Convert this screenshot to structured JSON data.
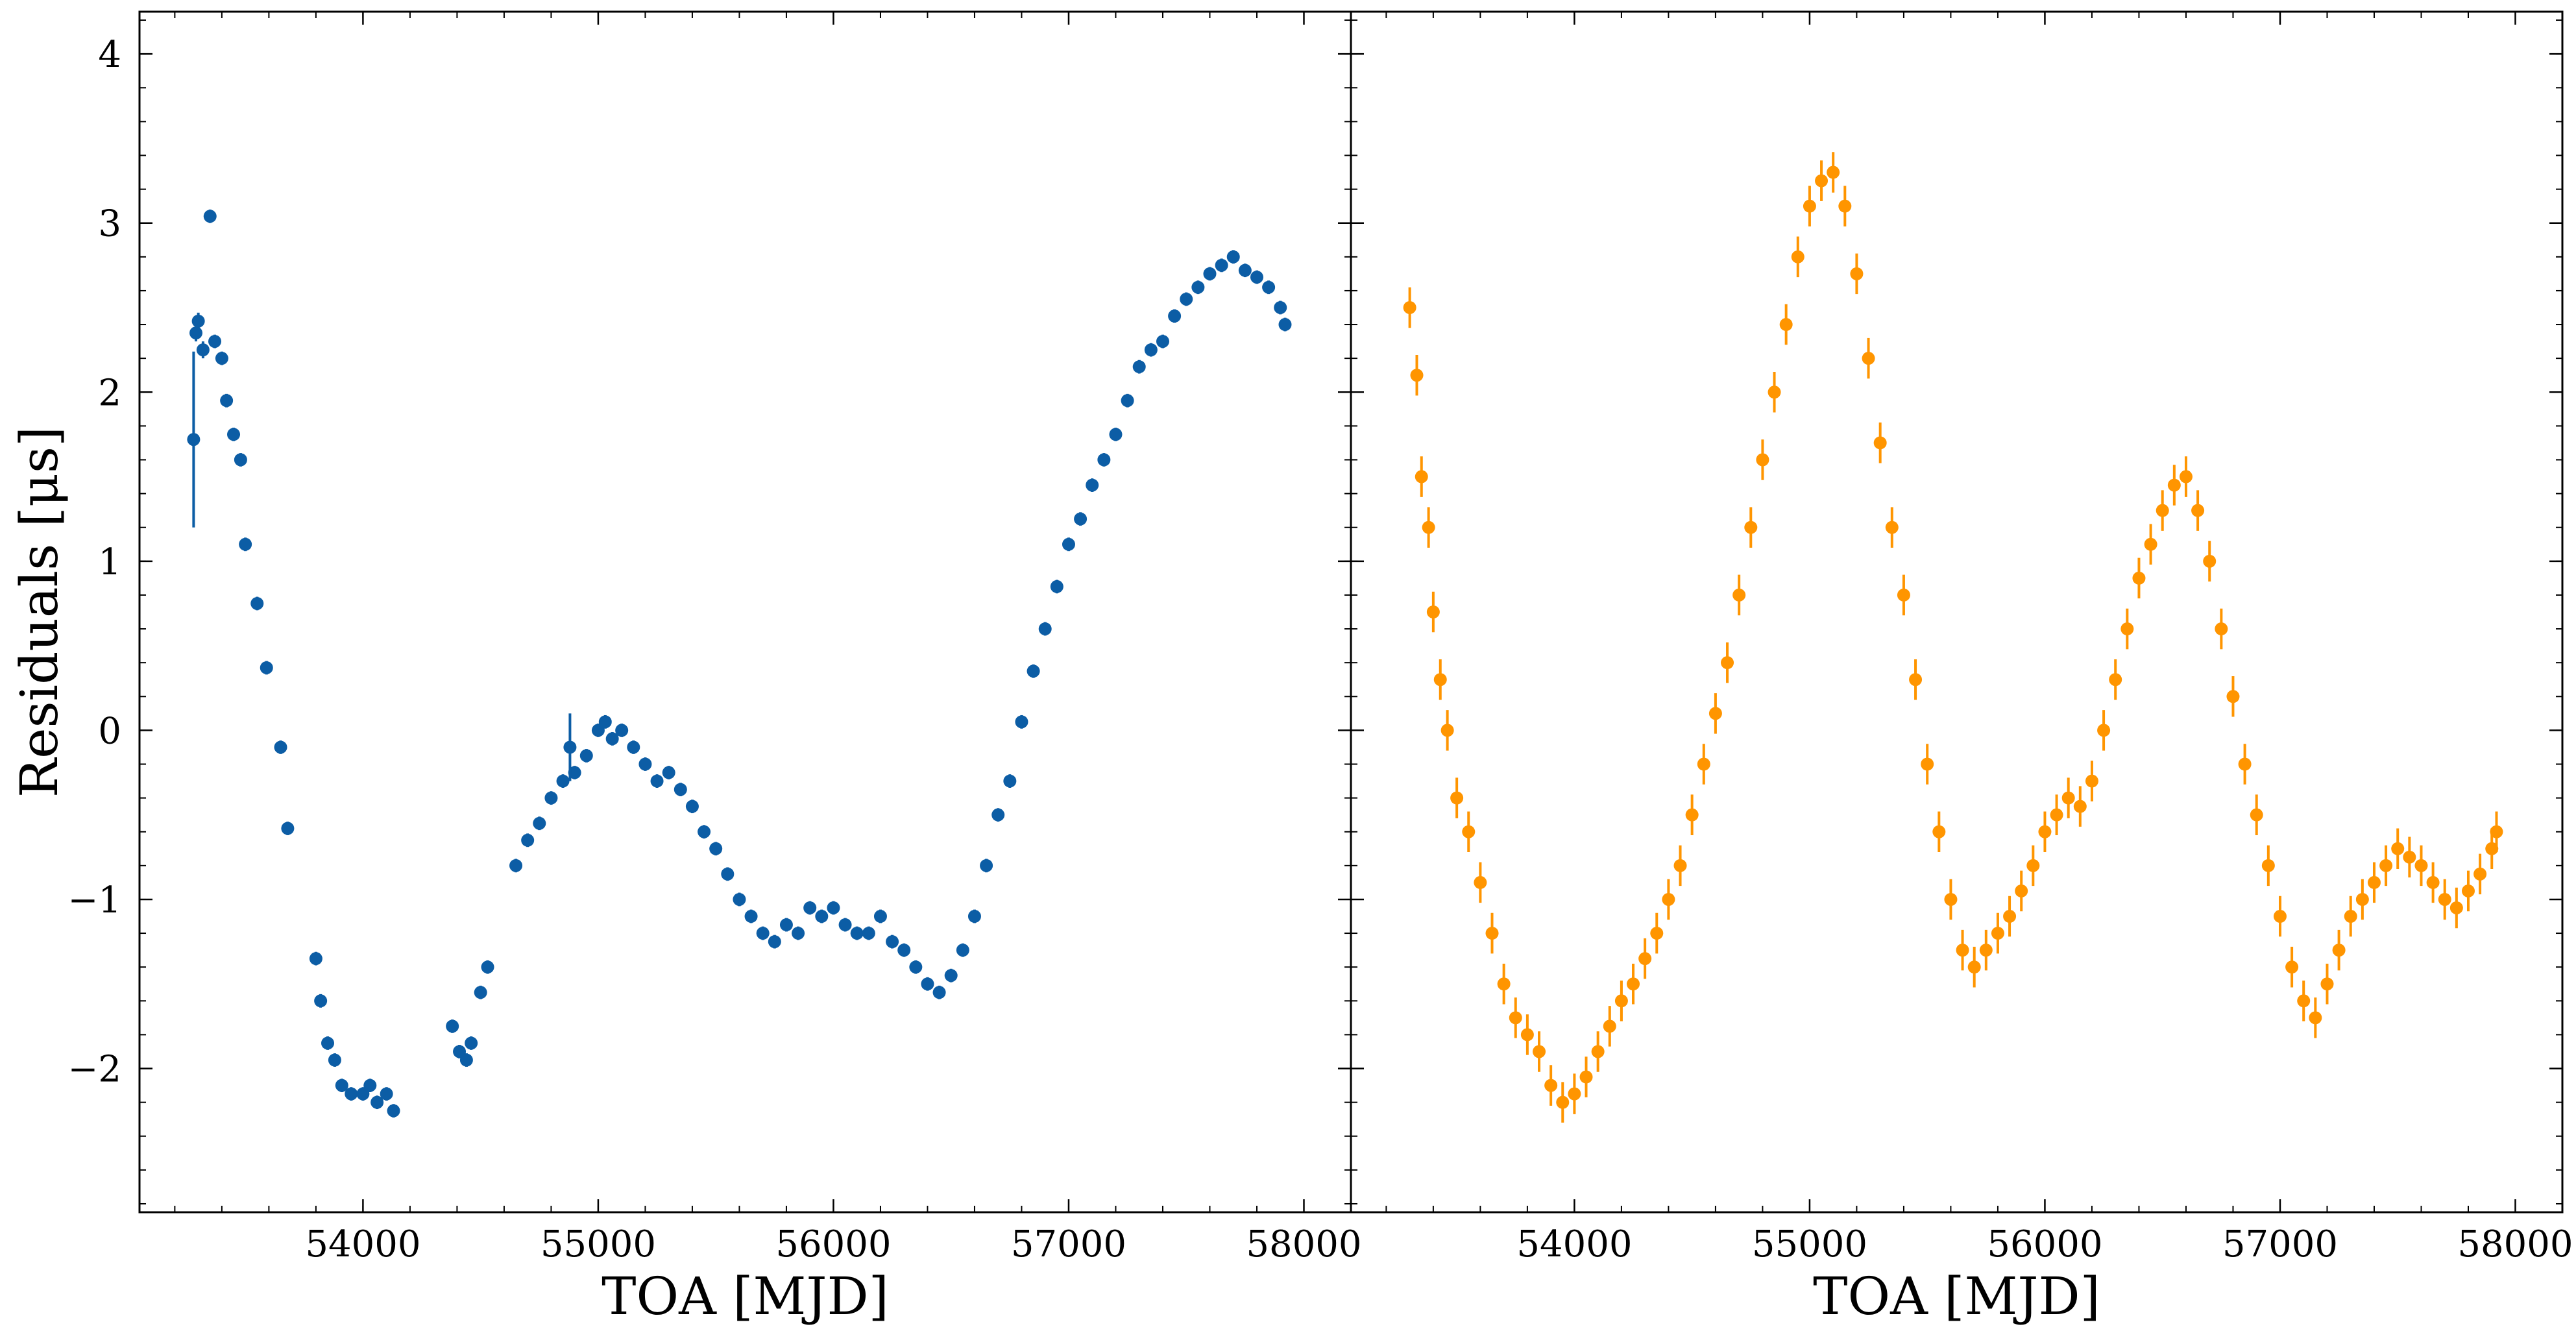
{
  "chart_data": [
    {
      "type": "scatter",
      "panel": "left",
      "title": "",
      "xlabel": "TOA [MJD]",
      "ylabel": "Residuals [μs]",
      "xlim": [
        53050,
        58200
      ],
      "ylim": [
        -2.85,
        4.25
      ],
      "xticks": [
        54000,
        55000,
        56000,
        57000,
        58000
      ],
      "yticks": [
        -2,
        -1,
        0,
        1,
        2,
        3,
        4
      ],
      "ytick_labels": [
        "−2",
        "−1",
        "0",
        "1",
        "2",
        "3",
        "4"
      ],
      "grid": false,
      "marker_color": "#0c5da5",
      "series": [
        {
          "x": [
            53290,
            53300,
            53320,
            53350,
            53370,
            53400,
            53420,
            53450,
            53480,
            53500,
            53550,
            53590,
            53650,
            53680,
            53800,
            53820,
            53850,
            53880,
            53910,
            53950,
            54000,
            54030,
            54060,
            54100,
            54130,
            54380,
            54410,
            54440,
            54460,
            54500,
            54530,
            54650,
            54700,
            54750,
            54800,
            54850,
            54900,
            54950,
            55000,
            55030,
            55060,
            55100,
            55150,
            55200,
            55250,
            55300,
            55350,
            55400,
            55450,
            55500,
            55550,
            55600,
            55650,
            55700,
            55750,
            55800,
            55850,
            55900,
            55950,
            56000,
            56050,
            56100,
            56150,
            56200,
            56250,
            56300,
            56350,
            56400,
            56450,
            56500,
            56550,
            56600,
            56650,
            56700,
            56750,
            56800,
            56850,
            56900,
            56950,
            57000,
            57050,
            57100,
            57150,
            57200,
            57250,
            57300,
            57350,
            57400,
            57450,
            57500,
            57550,
            57600,
            57650,
            57700,
            57750,
            57800,
            57850,
            57900,
            57920
          ],
          "y": [
            2.35,
            2.42,
            2.25,
            3.04,
            2.3,
            2.2,
            1.95,
            1.75,
            1.6,
            1.1,
            0.75,
            0.37,
            -0.1,
            -0.58,
            -1.35,
            -1.6,
            -1.85,
            -1.95,
            -2.1,
            -2.15,
            -2.15,
            -2.1,
            -2.2,
            -2.15,
            -2.25,
            -1.75,
            -1.9,
            -1.95,
            -1.85,
            -1.55,
            -1.4,
            -0.8,
            -0.65,
            -0.55,
            -0.4,
            -0.3,
            -0.25,
            -0.15,
            0.0,
            0.05,
            -0.05,
            0.0,
            -0.1,
            -0.2,
            -0.3,
            -0.25,
            -0.35,
            -0.45,
            -0.6,
            -0.7,
            -0.85,
            -1.0,
            -1.1,
            -1.2,
            -1.25,
            -1.15,
            -1.2,
            -1.05,
            -1.1,
            -1.05,
            -1.15,
            -1.2,
            -1.2,
            -1.1,
            -1.25,
            -1.3,
            -1.4,
            -1.5,
            -1.55,
            -1.45,
            -1.3,
            -1.1,
            -0.8,
            -0.5,
            -0.3,
            0.05,
            0.35,
            0.6,
            0.85,
            1.1,
            1.25,
            1.45,
            1.6,
            1.75,
            1.95,
            2.15,
            2.25,
            2.3,
            2.45,
            2.55,
            2.62,
            2.7,
            2.75,
            2.8,
            2.72,
            2.68,
            2.62,
            2.5,
            2.4
          ],
          "yerr": [
            0.05,
            0.05,
            0.05,
            0.04,
            0.04,
            0.04,
            0.04,
            0.04,
            0.04,
            0.04,
            0.04,
            0.04,
            0.04,
            0.04,
            0.04,
            0.04,
            0.04,
            0.04,
            0.04,
            0.04,
            0.04,
            0.04,
            0.04,
            0.04,
            0.04,
            0.04,
            0.04,
            0.04,
            0.04,
            0.04,
            0.04,
            0.04,
            0.04,
            0.04,
            0.04,
            0.04,
            0.04,
            0.04,
            0.04,
            0.04,
            0.04,
            0.04,
            0.04,
            0.04,
            0.04,
            0.04,
            0.04,
            0.04,
            0.04,
            0.04,
            0.04,
            0.04,
            0.04,
            0.04,
            0.04,
            0.04,
            0.04,
            0.04,
            0.04,
            0.04,
            0.04,
            0.04,
            0.04,
            0.04,
            0.04,
            0.04,
            0.04,
            0.04,
            0.04,
            0.04,
            0.04,
            0.04,
            0.04,
            0.04,
            0.04,
            0.04,
            0.04,
            0.04,
            0.04,
            0.04,
            0.04,
            0.04,
            0.04,
            0.04,
            0.04,
            0.04,
            0.04,
            0.04,
            0.04,
            0.04,
            0.04,
            0.04,
            0.04,
            0.04,
            0.04,
            0.04,
            0.04,
            0.04,
            0.04
          ]
        }
      ],
      "errorbar_highlights": [
        {
          "x": 53280,
          "y": 1.72,
          "yerr": 0.52
        },
        {
          "x": 54880,
          "y": -0.1,
          "yerr": 0.2
        }
      ]
    },
    {
      "type": "scatter",
      "panel": "right",
      "title": "",
      "xlabel": "TOA [MJD]",
      "ylabel": "",
      "xlim": [
        53050,
        58200
      ],
      "ylim": [
        -2.85,
        4.25
      ],
      "xticks": [
        54000,
        55000,
        56000,
        57000,
        58000
      ],
      "yticks": [
        -2,
        -1,
        0,
        1,
        2,
        3,
        4
      ],
      "grid": false,
      "marker_color": "#ff9500",
      "series": [
        {
          "x": [
            53300,
            53330,
            53350,
            53380,
            53400,
            53430,
            53460,
            53500,
            53550,
            53600,
            53650,
            53700,
            53750,
            53800,
            53850,
            53900,
            53950,
            54000,
            54050,
            54100,
            54150,
            54200,
            54250,
            54300,
            54350,
            54400,
            54450,
            54500,
            54550,
            54600,
            54650,
            54700,
            54750,
            54800,
            54850,
            54900,
            54950,
            55000,
            55050,
            55100,
            55150,
            55200,
            55250,
            55300,
            55350,
            55400,
            55450,
            55500,
            55550,
            55600,
            55650,
            55700,
            55750,
            55800,
            55850,
            55900,
            55950,
            56000,
            56050,
            56100,
            56150,
            56200,
            56250,
            56300,
            56350,
            56400,
            56450,
            56500,
            56550,
            56600,
            56650,
            56700,
            56750,
            56800,
            56850,
            56900,
            56950,
            57000,
            57050,
            57100,
            57150,
            57200,
            57250,
            57300,
            57350,
            57400,
            57450,
            57500,
            57550,
            57600,
            57650,
            57700,
            57750,
            57800,
            57850,
            57900,
            57920
          ],
          "y": [
            2.5,
            2.1,
            1.5,
            1.2,
            0.7,
            0.3,
            0.0,
            -0.4,
            -0.6,
            -0.9,
            -1.2,
            -1.5,
            -1.7,
            -1.8,
            -1.9,
            -2.1,
            -2.2,
            -2.15,
            -2.05,
            -1.9,
            -1.75,
            -1.6,
            -1.5,
            -1.35,
            -1.2,
            -1.0,
            -0.8,
            -0.5,
            -0.2,
            0.1,
            0.4,
            0.8,
            1.2,
            1.6,
            2.0,
            2.4,
            2.8,
            3.1,
            3.25,
            3.3,
            3.1,
            2.7,
            2.2,
            1.7,
            1.2,
            0.8,
            0.3,
            -0.2,
            -0.6,
            -1.0,
            -1.3,
            -1.4,
            -1.3,
            -1.2,
            -1.1,
            -0.95,
            -0.8,
            -0.6,
            -0.5,
            -0.4,
            -0.45,
            -0.3,
            0.0,
            0.3,
            0.6,
            0.9,
            1.1,
            1.3,
            1.45,
            1.5,
            1.3,
            1.0,
            0.6,
            0.2,
            -0.2,
            -0.5,
            -0.8,
            -1.1,
            -1.4,
            -1.6,
            -1.7,
            -1.5,
            -1.3,
            -1.1,
            -1.0,
            -0.9,
            -0.8,
            -0.7,
            -0.75,
            -0.8,
            -0.9,
            -1.0,
            -1.05,
            -0.95,
            -0.85,
            -0.7,
            -0.6
          ],
          "yerr": [
            0.12,
            0.12,
            0.12,
            0.12,
            0.12,
            0.12,
            0.12,
            0.12,
            0.12,
            0.12,
            0.12,
            0.12,
            0.12,
            0.12,
            0.12,
            0.12,
            0.12,
            0.12,
            0.12,
            0.12,
            0.12,
            0.12,
            0.12,
            0.12,
            0.12,
            0.12,
            0.12,
            0.12,
            0.12,
            0.12,
            0.12,
            0.12,
            0.12,
            0.12,
            0.12,
            0.12,
            0.12,
            0.12,
            0.12,
            0.12,
            0.12,
            0.12,
            0.12,
            0.12,
            0.12,
            0.12,
            0.12,
            0.12,
            0.12,
            0.12,
            0.12,
            0.12,
            0.12,
            0.12,
            0.12,
            0.12,
            0.12,
            0.12,
            0.12,
            0.12,
            0.12,
            0.12,
            0.12,
            0.12,
            0.12,
            0.12,
            0.12,
            0.12,
            0.12,
            0.12,
            0.12,
            0.12,
            0.12,
            0.12,
            0.12,
            0.12,
            0.12,
            0.12,
            0.12,
            0.12,
            0.12,
            0.12,
            0.12,
            0.12,
            0.12,
            0.12,
            0.12,
            0.12,
            0.12,
            0.12,
            0.12,
            0.12,
            0.12,
            0.12,
            0.12,
            0.12,
            0.12
          ]
        }
      ]
    }
  ]
}
